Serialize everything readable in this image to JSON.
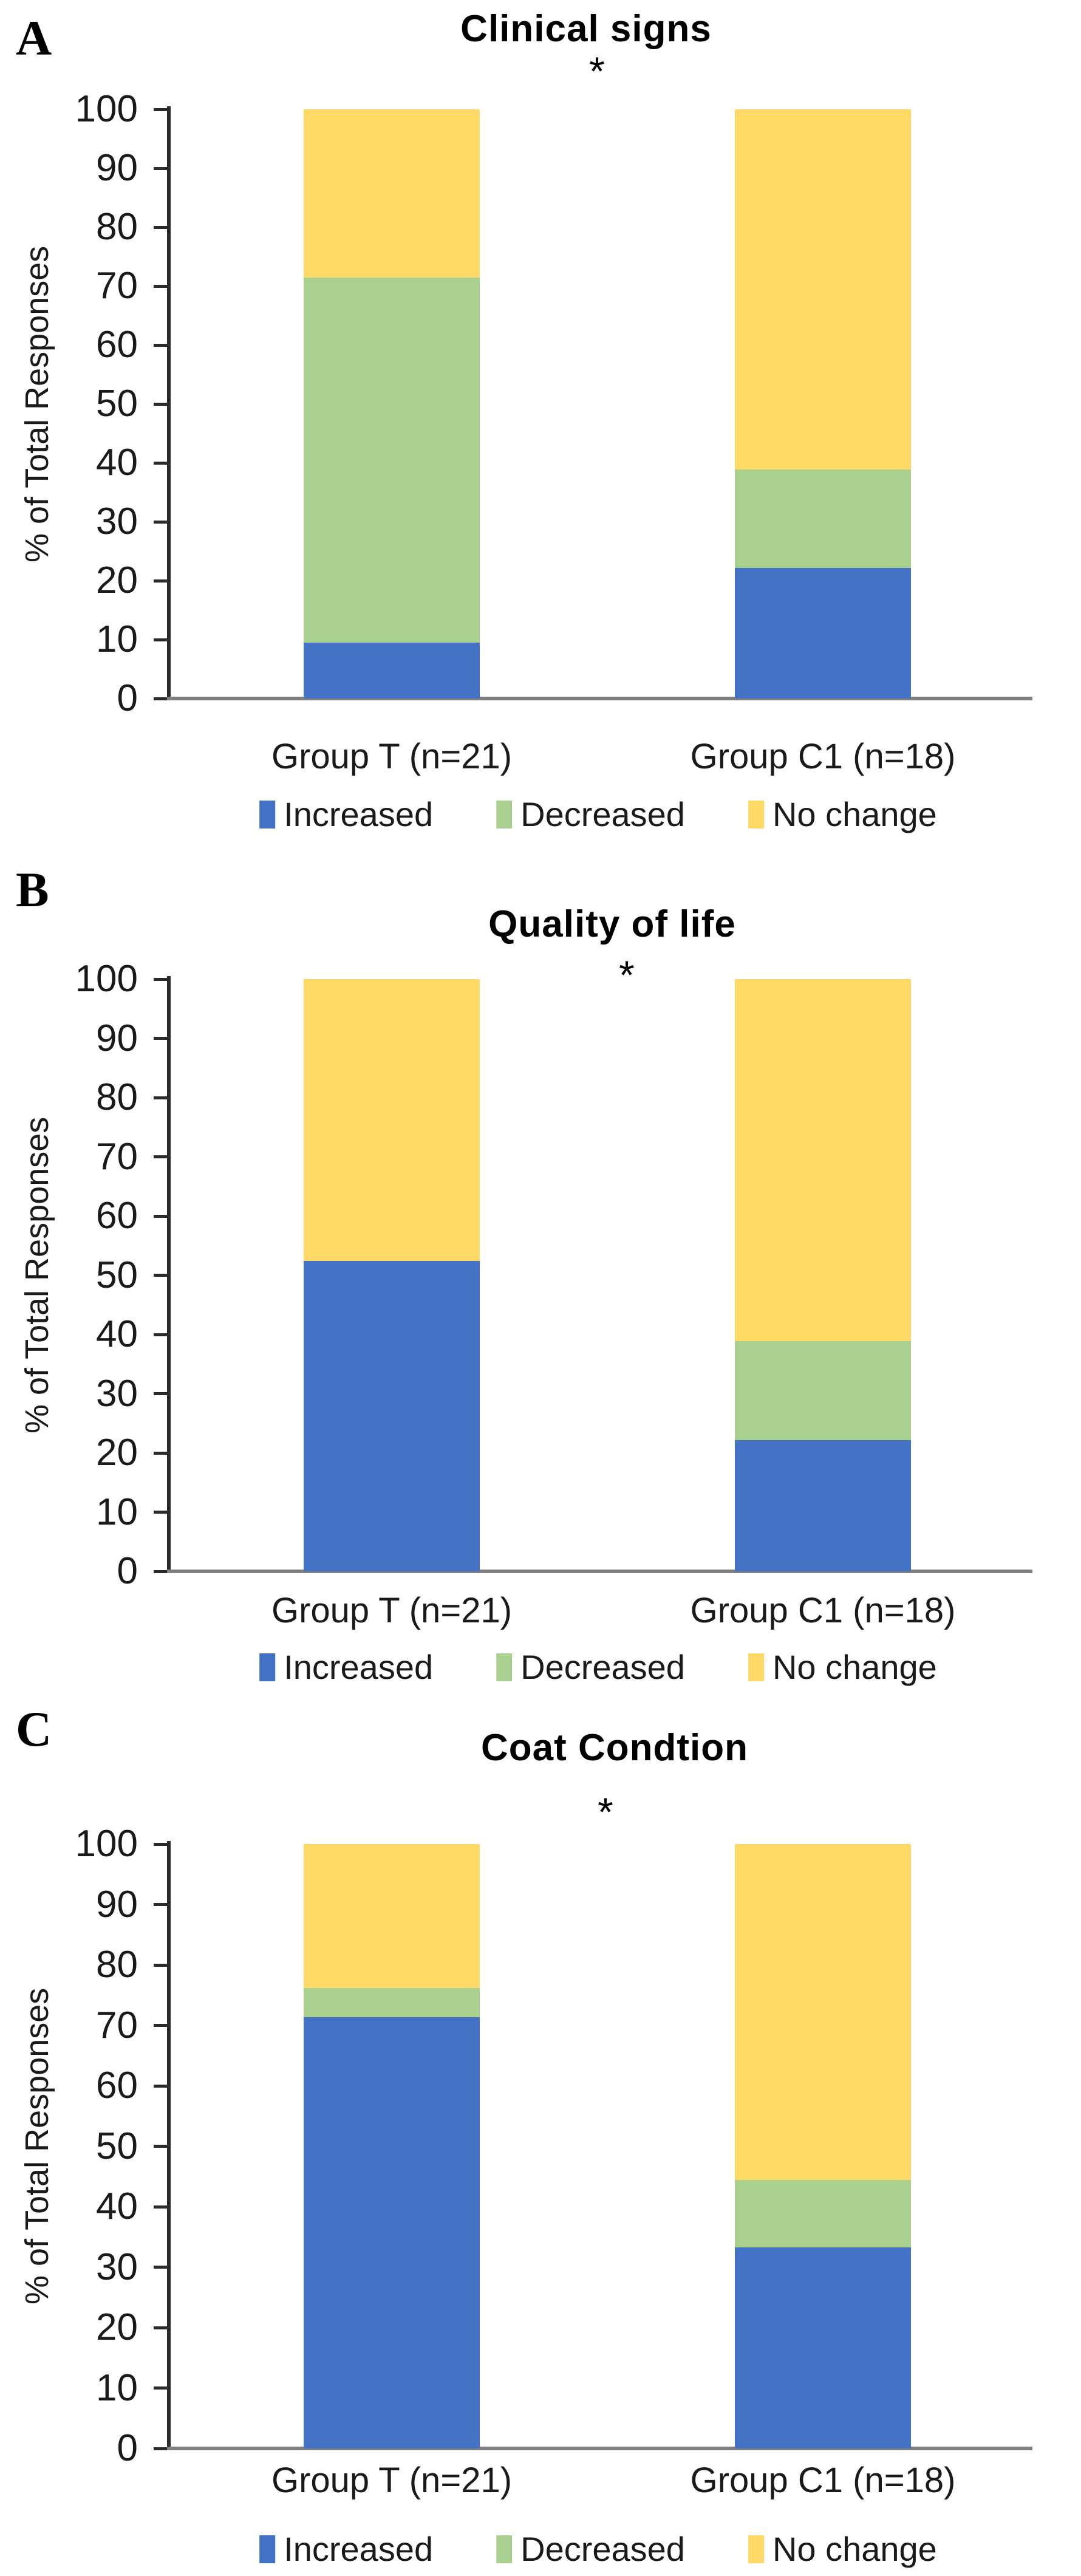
{
  "figure": {
    "background": "#ffffff",
    "axis_color": "#2b2b2b",
    "baseline_color": "#808080",
    "text_color": "#000000"
  },
  "chart_data": [
    {
      "panel": "A",
      "type": "bar",
      "stacked": true,
      "title": "Clinical signs",
      "significance_marker": "*",
      "ylabel": "% of Total Responses",
      "ylim": [
        0,
        100
      ],
      "ytick_step": 10,
      "grid": false,
      "legend_position": "bottom",
      "categories": [
        "Group T (n=21)",
        "Group C1 (n=18)"
      ],
      "series": [
        {
          "name": "Increased",
          "color": "#4472C4",
          "values": [
            9.5,
            22.2
          ]
        },
        {
          "name": "Decreased",
          "color": "#A9D08E",
          "values": [
            61.9,
            16.7
          ]
        },
        {
          "name": "No change",
          "color": "#FFD966",
          "values": [
            28.6,
            61.1
          ]
        }
      ]
    },
    {
      "panel": "B",
      "type": "bar",
      "stacked": true,
      "title": "Quality of life",
      "significance_marker": "*",
      "ylabel": "% of Total Responses",
      "ylim": [
        0,
        100
      ],
      "ytick_step": 10,
      "grid": false,
      "legend_position": "bottom",
      "categories": [
        "Group T (n=21)",
        "Group C1 (n=18)"
      ],
      "series": [
        {
          "name": "Increased",
          "color": "#4472C4",
          "values": [
            52.4,
            22.2
          ]
        },
        {
          "name": "Decreased",
          "color": "#A9D08E",
          "values": [
            0,
            16.7
          ]
        },
        {
          "name": "No change",
          "color": "#FFD966",
          "values": [
            47.6,
            61.1
          ]
        }
      ]
    },
    {
      "panel": "C",
      "type": "bar",
      "stacked": true,
      "title": "Coat Condtion",
      "significance_marker": "*",
      "ylabel": "% of Total Responses",
      "ylim": [
        0,
        100
      ],
      "ytick_step": 10,
      "grid": false,
      "legend_position": "bottom",
      "categories": [
        "Group T (n=21)",
        "Group C1 (n=18)"
      ],
      "series": [
        {
          "name": "Increased",
          "color": "#4472C4",
          "values": [
            71.4,
            33.3
          ]
        },
        {
          "name": "Decreased",
          "color": "#A9D08E",
          "values": [
            4.8,
            11.1
          ]
        },
        {
          "name": "No change",
          "color": "#FFD966",
          "values": [
            23.8,
            55.6
          ]
        }
      ]
    }
  ]
}
